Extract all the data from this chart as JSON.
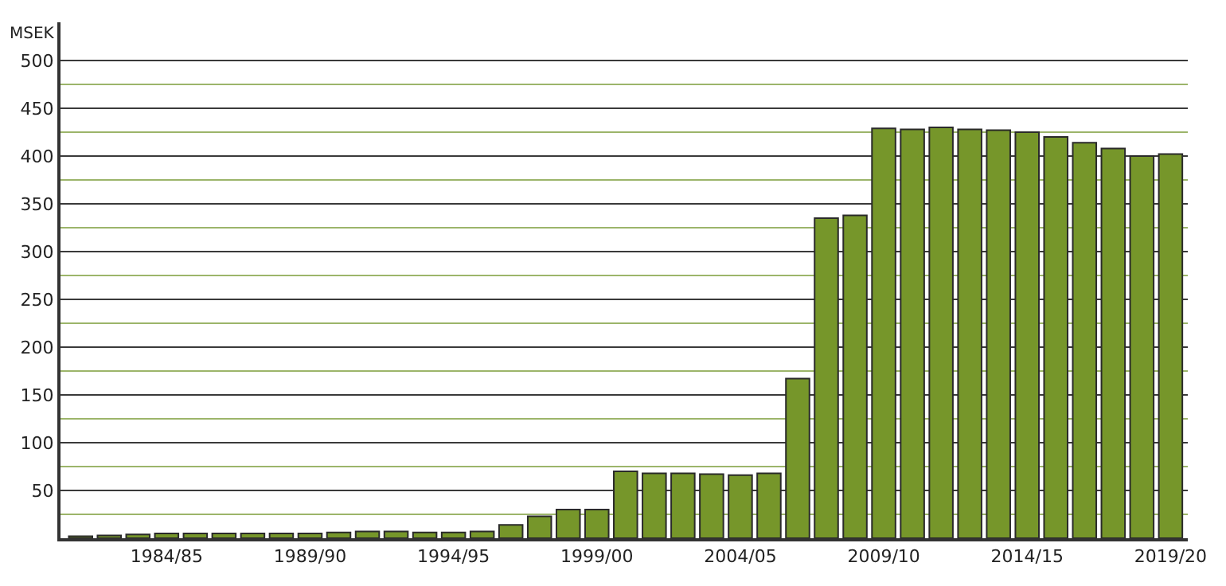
{
  "chart_data": {
    "type": "bar",
    "ylabel": "MSEK",
    "categories": [
      null,
      null,
      null,
      "1984/85",
      null,
      null,
      null,
      null,
      "1989/90",
      null,
      null,
      null,
      null,
      "1994/95",
      null,
      null,
      null,
      null,
      "1999/00",
      null,
      null,
      null,
      null,
      "2004/05",
      null,
      null,
      null,
      null,
      "2009/10",
      null,
      null,
      null,
      null,
      "2014/15",
      null,
      null,
      null,
      null,
      "2019/20"
    ],
    "values": [
      2,
      3,
      4,
      5,
      5,
      5,
      5,
      5,
      5,
      6,
      7,
      7,
      6,
      6,
      7,
      14,
      23,
      30,
      30,
      70,
      68,
      68,
      67,
      66,
      68,
      167,
      335,
      338,
      429,
      428,
      430,
      428,
      427,
      425,
      420,
      414,
      408,
      400,
      402
    ],
    "color": "#76962a",
    "ylim": [
      0,
      540
    ],
    "yticks": [
      {
        "value": 25,
        "label": null
      },
      50,
      {
        "value": 75,
        "label": null
      },
      100,
      {
        "value": 125,
        "label": null
      },
      150,
      {
        "value": 175,
        "label": null
      },
      200,
      {
        "value": 225,
        "label": null
      },
      250,
      {
        "value": 275,
        "label": null
      },
      300,
      {
        "value": 325,
        "label": null
      },
      350,
      {
        "value": 375,
        "label": null
      },
      400,
      {
        "value": 425,
        "label": null
      },
      450,
      {
        "value": 475,
        "label": null
      },
      500
    ],
    "grid": "y"
  }
}
